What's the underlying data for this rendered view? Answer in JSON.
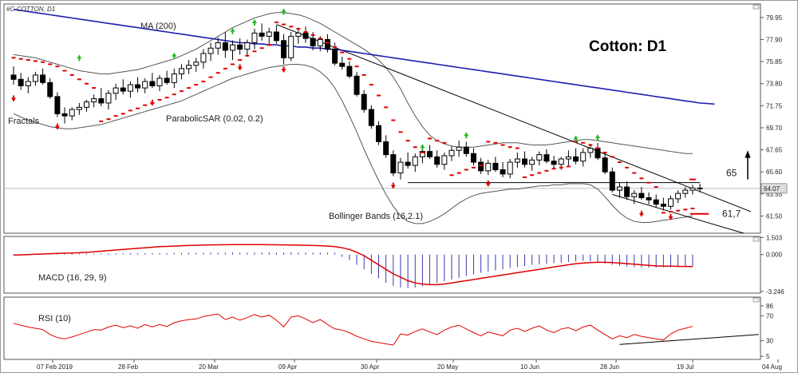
{
  "symbol_label": "#C-COTTON, D1",
  "chart_title": "Cotton: D1",
  "colors": {
    "background": "#ffffff",
    "frame": "#555555",
    "ma": "#1f1fb0",
    "bollinger": "#555555",
    "sar": "#e00000",
    "fractal_up": "#22bb22",
    "fractal_down": "#e00000",
    "candle": "#000000",
    "macd_signal": "#e00000",
    "macd_hist": "#3a3ab0",
    "rsi": "#e00000",
    "trendline": "#000000",
    "tracker": "#bbbbbb"
  },
  "chart_data": [
    {
      "type": "candlestick",
      "name": "main",
      "x_labels": [
        "07 Feb 2019",
        "28 Feb",
        "20 Mar",
        "09 Apr",
        "30 Apr",
        "20 May",
        "10 Jun",
        "28 Jun",
        "19 Jul",
        "04 Aug"
      ],
      "y_ticks": [
        "79.95",
        "77.90",
        "75.85",
        "73.80",
        "71.75",
        "69.70",
        "67.65",
        "65.60",
        "63.55",
        "61.50"
      ],
      "ylim": [
        59.9,
        81.2
      ],
      "current_price": "64.07",
      "indicator_labels": {
        "ma": "MA (200)",
        "fractals": "Fractals",
        "sar": "ParabolicSAR (0.02, 0.2)",
        "bollinger": "Bollinger Bands (16,2.1)"
      },
      "annotations": {
        "resistance": "65",
        "support": "61,7"
      },
      "ohlc": [
        [
          74.6,
          75.4,
          73.7,
          74.2
        ],
        [
          74.2,
          74.8,
          73.2,
          73.6
        ],
        [
          73.6,
          74.4,
          72.9,
          74.0
        ],
        [
          74.0,
          74.9,
          73.6,
          74.6
        ],
        [
          74.6,
          75.2,
          73.7,
          73.9
        ],
        [
          73.9,
          74.3,
          72.4,
          72.6
        ],
        [
          72.6,
          73.0,
          70.7,
          71.0
        ],
        [
          71.0,
          71.6,
          70.1,
          70.8
        ],
        [
          70.8,
          71.6,
          70.4,
          71.4
        ],
        [
          71.4,
          72.0,
          70.9,
          71.6
        ],
        [
          71.6,
          72.3,
          71.2,
          72.1
        ],
        [
          72.1,
          72.8,
          71.6,
          72.4
        ],
        [
          72.4,
          73.4,
          71.7,
          72.0
        ],
        [
          72.0,
          73.2,
          71.4,
          72.9
        ],
        [
          72.9,
          73.8,
          72.3,
          73.4
        ],
        [
          73.4,
          74.2,
          72.8,
          73.1
        ],
        [
          73.1,
          74.0,
          72.5,
          73.7
        ],
        [
          73.7,
          74.4,
          73.0,
          73.4
        ],
        [
          73.4,
          74.3,
          72.9,
          74.0
        ],
        [
          74.0,
          74.8,
          73.4,
          73.6
        ],
        [
          73.6,
          74.6,
          73.1,
          74.3
        ],
        [
          74.3,
          75.0,
          73.7,
          73.9
        ],
        [
          73.9,
          75.2,
          73.4,
          74.7
        ],
        [
          74.7,
          75.6,
          74.2,
          75.2
        ],
        [
          75.2,
          76.0,
          74.7,
          75.5
        ],
        [
          75.5,
          76.2,
          74.9,
          75.8
        ],
        [
          75.8,
          77.0,
          75.2,
          76.6
        ],
        [
          76.6,
          77.6,
          75.9,
          77.1
        ],
        [
          77.1,
          78.1,
          76.5,
          77.6
        ],
        [
          77.6,
          78.6,
          76.2,
          76.9
        ],
        [
          76.9,
          77.8,
          76.0,
          77.4
        ],
        [
          77.4,
          78.0,
          76.5,
          77.0
        ],
        [
          77.0,
          77.9,
          76.3,
          77.6
        ],
        [
          77.6,
          78.9,
          77.0,
          78.5
        ],
        [
          78.5,
          79.4,
          77.8,
          78.2
        ],
        [
          78.2,
          79.0,
          77.3,
          78.6
        ],
        [
          78.6,
          79.2,
          77.5,
          77.8
        ],
        [
          77.8,
          78.4,
          75.6,
          76.2
        ],
        [
          76.2,
          78.6,
          75.9,
          78.2
        ],
        [
          78.2,
          79.0,
          77.5,
          78.5
        ],
        [
          78.5,
          79.1,
          77.6,
          78.0
        ],
        [
          78.0,
          78.6,
          76.9,
          77.3
        ],
        [
          77.3,
          78.2,
          76.8,
          77.9
        ],
        [
          77.9,
          78.4,
          76.7,
          77.0
        ],
        [
          77.0,
          77.6,
          75.5,
          75.7
        ],
        [
          75.7,
          76.3,
          75.1,
          75.4
        ],
        [
          75.4,
          75.9,
          74.3,
          74.5
        ],
        [
          74.5,
          74.9,
          72.6,
          72.8
        ],
        [
          72.8,
          73.2,
          71.1,
          71.4
        ],
        [
          71.4,
          71.8,
          69.6,
          69.9
        ],
        [
          69.9,
          70.3,
          68.1,
          68.4
        ],
        [
          68.4,
          69.0,
          66.9,
          67.2
        ],
        [
          67.2,
          67.6,
          65.2,
          65.5
        ],
        [
          65.5,
          66.9,
          64.9,
          66.5
        ],
        [
          66.5,
          67.4,
          65.9,
          66.2
        ],
        [
          66.2,
          67.3,
          65.6,
          67.0
        ],
        [
          67.0,
          67.9,
          66.4,
          67.5
        ],
        [
          67.5,
          68.1,
          66.8,
          67.0
        ],
        [
          67.0,
          67.6,
          66.0,
          66.3
        ],
        [
          66.3,
          67.4,
          65.8,
          67.1
        ],
        [
          67.1,
          68.0,
          66.6,
          67.6
        ],
        [
          67.6,
          68.5,
          67.0,
          67.9
        ],
        [
          67.9,
          68.4,
          67.0,
          67.3
        ],
        [
          67.3,
          67.8,
          66.2,
          66.5
        ],
        [
          66.5,
          66.9,
          65.4,
          65.7
        ],
        [
          65.7,
          66.7,
          65.3,
          66.4
        ],
        [
          66.4,
          67.0,
          65.6,
          65.8
        ],
        [
          65.8,
          66.5,
          65.1,
          65.4
        ],
        [
          65.4,
          66.8,
          65.0,
          66.5
        ],
        [
          66.5,
          67.4,
          66.0,
          66.8
        ],
        [
          66.8,
          67.5,
          66.0,
          66.3
        ],
        [
          66.3,
          67.0,
          65.7,
          66.7
        ],
        [
          66.7,
          67.5,
          66.2,
          67.2
        ],
        [
          67.2,
          67.7,
          66.4,
          66.6
        ],
        [
          66.6,
          67.1,
          65.9,
          66.3
        ],
        [
          66.3,
          67.0,
          65.8,
          66.8
        ],
        [
          66.8,
          67.6,
          66.2,
          67.0
        ],
        [
          67.0,
          67.8,
          66.3,
          66.6
        ],
        [
          66.6,
          67.8,
          66.1,
          67.4
        ],
        [
          67.4,
          68.2,
          66.9,
          67.8
        ],
        [
          67.8,
          68.3,
          66.7,
          66.9
        ],
        [
          66.9,
          67.4,
          65.4,
          65.6
        ],
        [
          65.6,
          66.0,
          63.7,
          63.9
        ],
        [
          63.9,
          64.6,
          63.2,
          64.2
        ],
        [
          64.2,
          64.7,
          63.0,
          63.3
        ],
        [
          63.3,
          63.9,
          62.6,
          63.6
        ],
        [
          63.6,
          64.2,
          63.0,
          63.2
        ],
        [
          63.2,
          63.7,
          62.6,
          63.0
        ],
        [
          63.0,
          63.5,
          62.3,
          62.6
        ],
        [
          62.6,
          63.2,
          62.0,
          62.4
        ],
        [
          62.4,
          63.4,
          62.1,
          63.1
        ],
        [
          63.1,
          63.9,
          62.7,
          63.6
        ],
        [
          63.6,
          64.2,
          63.2,
          63.9
        ],
        [
          63.9,
          64.4,
          63.5,
          64.1
        ],
        [
          64.1,
          64.5,
          63.7,
          64.07
        ]
      ],
      "ma200": [
        80.7,
        80.6,
        80.5,
        80.4,
        80.3,
        80.2,
        80.1,
        80.0,
        79.9,
        79.8,
        79.7,
        79.6,
        79.5,
        79.4,
        79.3,
        79.2,
        79.1,
        79.0,
        78.9,
        78.8,
        78.7,
        78.6,
        78.5,
        78.4,
        78.3,
        78.2,
        78.1,
        78.0,
        77.9,
        77.8,
        77.7,
        77.6,
        77.6,
        77.5,
        77.5,
        77.4,
        77.4,
        77.3,
        77.3,
        77.2,
        77.2,
        77.1,
        77.1,
        77.0,
        77.0,
        76.9,
        76.8,
        76.7,
        76.6,
        76.5,
        76.4,
        76.3,
        76.2,
        76.1,
        76.0,
        75.9,
        75.8,
        75.7,
        75.6,
        75.5,
        75.4,
        75.3,
        75.2,
        75.1,
        75.0,
        74.9,
        74.8,
        74.7,
        74.6,
        74.5,
        74.4,
        74.3,
        74.2,
        74.1,
        74.0,
        73.9,
        73.8,
        73.7,
        73.6,
        73.5,
        73.4,
        73.3,
        73.2,
        73.1,
        73.0,
        72.9,
        72.8,
        72.7,
        72.6,
        72.5,
        72.4,
        72.3,
        72.2,
        72.1
      ],
      "sar": [
        76.2,
        76.1,
        76.0,
        75.9,
        75.8,
        75.6,
        75.4,
        75.0,
        74.6,
        74.2,
        73.8,
        73.4,
        70.3,
        70.5,
        70.8,
        71.0,
        71.3,
        71.5,
        71.8,
        72.0,
        72.3,
        72.5,
        72.8,
        73.1,
        73.4,
        73.7,
        74.0,
        74.4,
        74.8,
        75.2,
        75.6,
        76.0,
        76.4,
        76.8,
        77.1,
        77.4,
        79.5,
        79.3,
        79.1,
        78.9,
        78.6,
        78.3,
        78.0,
        77.6,
        77.2,
        76.7,
        76.1,
        75.4,
        74.6,
        73.7,
        72.7,
        71.6,
        70.4,
        69.3,
        68.5,
        67.9,
        67.4,
        68.7,
        68.5,
        68.3,
        65.3,
        65.5,
        65.8,
        66.0,
        66.2,
        68.4,
        68.3,
        68.1,
        67.9,
        67.8,
        65.1,
        65.3,
        65.5,
        65.7,
        65.9,
        66.0,
        66.1,
        68.4,
        68.3,
        68.1,
        67.8,
        67.4,
        67.0,
        66.5,
        66.0,
        65.5,
        65.0,
        64.6,
        64.2,
        61.8,
        61.9,
        62.0,
        62.1,
        62.2
      ],
      "bb_upper": [
        76.5,
        76.4,
        76.3,
        76.2,
        76.0,
        75.8,
        75.6,
        75.4,
        75.2,
        75.0,
        74.9,
        74.8,
        74.7,
        74.7,
        74.8,
        74.9,
        75.0,
        75.1,
        75.3,
        75.5,
        75.7,
        75.9,
        76.1,
        76.4,
        76.7,
        77.0,
        77.4,
        77.8,
        78.2,
        78.6,
        79.0,
        79.3,
        79.6,
        79.9,
        80.1,
        80.3,
        80.4,
        80.4,
        80.3,
        80.2,
        80.0,
        79.7,
        79.4,
        79.0,
        78.6,
        78.2,
        77.8,
        77.4,
        77.0,
        76.5,
        76.0,
        75.3,
        74.4,
        73.3,
        72.0,
        70.8,
        69.8,
        69.0,
        68.5,
        68.2,
        68.0,
        67.9,
        67.9,
        67.9,
        68.0,
        68.1,
        68.2,
        68.3,
        68.3,
        68.3,
        68.2,
        68.1,
        68.1,
        68.1,
        68.2,
        68.3,
        68.4,
        68.5,
        68.6,
        68.6,
        68.5,
        68.4,
        68.3,
        68.2,
        68.1,
        68.0,
        67.9,
        67.8,
        67.7,
        67.6,
        67.5,
        67.4,
        67.3,
        67.3
      ],
      "bb_lower": [
        71.0,
        70.7,
        70.4,
        70.2,
        70.0,
        69.8,
        69.7,
        69.6,
        69.6,
        69.7,
        69.8,
        69.9,
        70.0,
        70.2,
        70.4,
        70.6,
        70.8,
        71.0,
        71.2,
        71.4,
        71.6,
        71.8,
        72.0,
        72.2,
        72.5,
        72.8,
        73.1,
        73.4,
        73.7,
        74.0,
        74.3,
        74.5,
        74.7,
        74.9,
        75.1,
        75.3,
        75.4,
        75.5,
        75.6,
        75.6,
        75.5,
        75.3,
        74.9,
        74.3,
        73.4,
        72.2,
        70.8,
        69.3,
        67.7,
        66.2,
        64.8,
        63.5,
        62.4,
        61.5,
        61.0,
        60.8,
        60.8,
        61.0,
        61.3,
        61.7,
        62.2,
        62.7,
        63.1,
        63.4,
        63.6,
        63.7,
        63.8,
        63.9,
        64.0,
        64.0,
        64.1,
        64.2,
        64.3,
        64.3,
        64.4,
        64.4,
        64.5,
        64.5,
        64.5,
        64.4,
        64.0,
        63.3,
        62.5,
        61.8,
        61.3,
        61.0,
        60.9,
        60.9,
        61.0,
        61.1,
        61.2,
        61.3,
        61.4,
        61.5
      ],
      "fractals_up": [
        [
          9,
          75.9
        ],
        [
          22,
          76.1
        ],
        [
          30,
          78.4
        ],
        [
          33,
          79.2
        ],
        [
          37,
          80.2
        ],
        [
          56,
          67.6
        ],
        [
          62,
          68.7
        ],
        [
          77,
          68.4
        ],
        [
          80,
          68.5
        ]
      ],
      "fractals_down": [
        [
          0,
          72.7
        ],
        [
          6,
          70.1
        ],
        [
          19,
          72.3
        ],
        [
          31,
          75.6
        ],
        [
          37,
          75.4
        ],
        [
          52,
          64.6
        ],
        [
          65,
          64.8
        ],
        [
          86,
          62.0
        ],
        [
          90,
          61.7
        ]
      ]
    },
    {
      "type": "bar+line",
      "name": "macd",
      "label": "MACD (16, 29, 9)",
      "y_ticks": [
        "1.503",
        "0.000",
        "-3.246"
      ],
      "ylim": [
        -3.4,
        1.6
      ],
      "hist": [
        0.05,
        0.05,
        0.06,
        0.06,
        0.07,
        0.07,
        0.07,
        0.08,
        0.08,
        0.08,
        0.09,
        0.09,
        0.1,
        0.1,
        0.11,
        0.11,
        0.12,
        0.12,
        0.13,
        0.13,
        0.14,
        0.14,
        0.15,
        0.15,
        0.16,
        0.16,
        0.16,
        0.17,
        0.17,
        0.17,
        0.18,
        0.18,
        0.18,
        0.18,
        0.19,
        0.19,
        0.19,
        0.19,
        0.19,
        0.18,
        0.18,
        0.18,
        0.17,
        0.17,
        0.16,
        -0.2,
        -0.5,
        -0.9,
        -1.3,
        -1.7,
        -2.1,
        -2.5,
        -2.75,
        -2.9,
        -2.95,
        -2.9,
        -2.8,
        -2.65,
        -2.5,
        -2.35,
        -2.2,
        -2.05,
        -1.9,
        -1.75,
        -1.6,
        -1.5,
        -1.4,
        -1.3,
        -1.2,
        -1.1,
        -1.0,
        -0.9,
        -0.85,
        -0.8,
        -0.75,
        -0.7,
        -0.65,
        -0.6,
        -0.55,
        -0.6,
        -0.7,
        -0.8,
        -0.9,
        -1.0,
        -1.05,
        -1.1,
        -1.12,
        -1.15,
        -1.15,
        -1.12,
        -1.1,
        -1.08,
        -1.05,
        -1.02
      ],
      "signal": [
        -0.05,
        -0.03,
        0.0,
        0.03,
        0.05,
        0.08,
        0.1,
        0.12,
        0.14,
        0.16,
        0.2,
        0.25,
        0.3,
        0.35,
        0.4,
        0.45,
        0.5,
        0.55,
        0.6,
        0.65,
        0.7,
        0.72,
        0.75,
        0.78,
        0.8,
        0.82,
        0.84,
        0.85,
        0.86,
        0.87,
        0.88,
        0.88,
        0.88,
        0.88,
        0.88,
        0.87,
        0.86,
        0.85,
        0.84,
        0.83,
        0.82,
        0.8,
        0.78,
        0.75,
        0.7,
        0.6,
        0.45,
        0.2,
        -0.1,
        -0.5,
        -0.9,
        -1.3,
        -1.7,
        -2.0,
        -2.3,
        -2.5,
        -2.6,
        -2.65,
        -2.65,
        -2.6,
        -2.5,
        -2.4,
        -2.3,
        -2.2,
        -2.1,
        -2.0,
        -1.9,
        -1.8,
        -1.7,
        -1.6,
        -1.5,
        -1.4,
        -1.3,
        -1.2,
        -1.1,
        -1.0,
        -0.9,
        -0.8,
        -0.75,
        -0.7,
        -0.68,
        -0.68,
        -0.7,
        -0.75,
        -0.8,
        -0.85,
        -0.9,
        -0.95,
        -1.0,
        -1.02,
        -1.03,
        -1.04,
        -1.05,
        -1.06
      ]
    },
    {
      "type": "line",
      "name": "rsi",
      "label": "RSI (10)",
      "y_ticks": [
        "86",
        "70",
        "30",
        "5"
      ],
      "ylim": [
        0,
        100
      ],
      "values": [
        58,
        55,
        52,
        50,
        48,
        40,
        35,
        33,
        36,
        40,
        44,
        48,
        47,
        52,
        55,
        51,
        54,
        50,
        56,
        52,
        56,
        53,
        59,
        62,
        64,
        65,
        69,
        71,
        73,
        64,
        68,
        63,
        67,
        72,
        68,
        71,
        63,
        52,
        68,
        70,
        65,
        59,
        64,
        56,
        49,
        47,
        43,
        37,
        33,
        29,
        27,
        25,
        23,
        41,
        39,
        45,
        49,
        44,
        40,
        47,
        52,
        55,
        49,
        43,
        38,
        44,
        41,
        38,
        47,
        50,
        45,
        50,
        54,
        47,
        43,
        49,
        51,
        46,
        52,
        55,
        47,
        40,
        33,
        38,
        35,
        40,
        37,
        35,
        33,
        31,
        41,
        47,
        50,
        53
      ]
    }
  ]
}
